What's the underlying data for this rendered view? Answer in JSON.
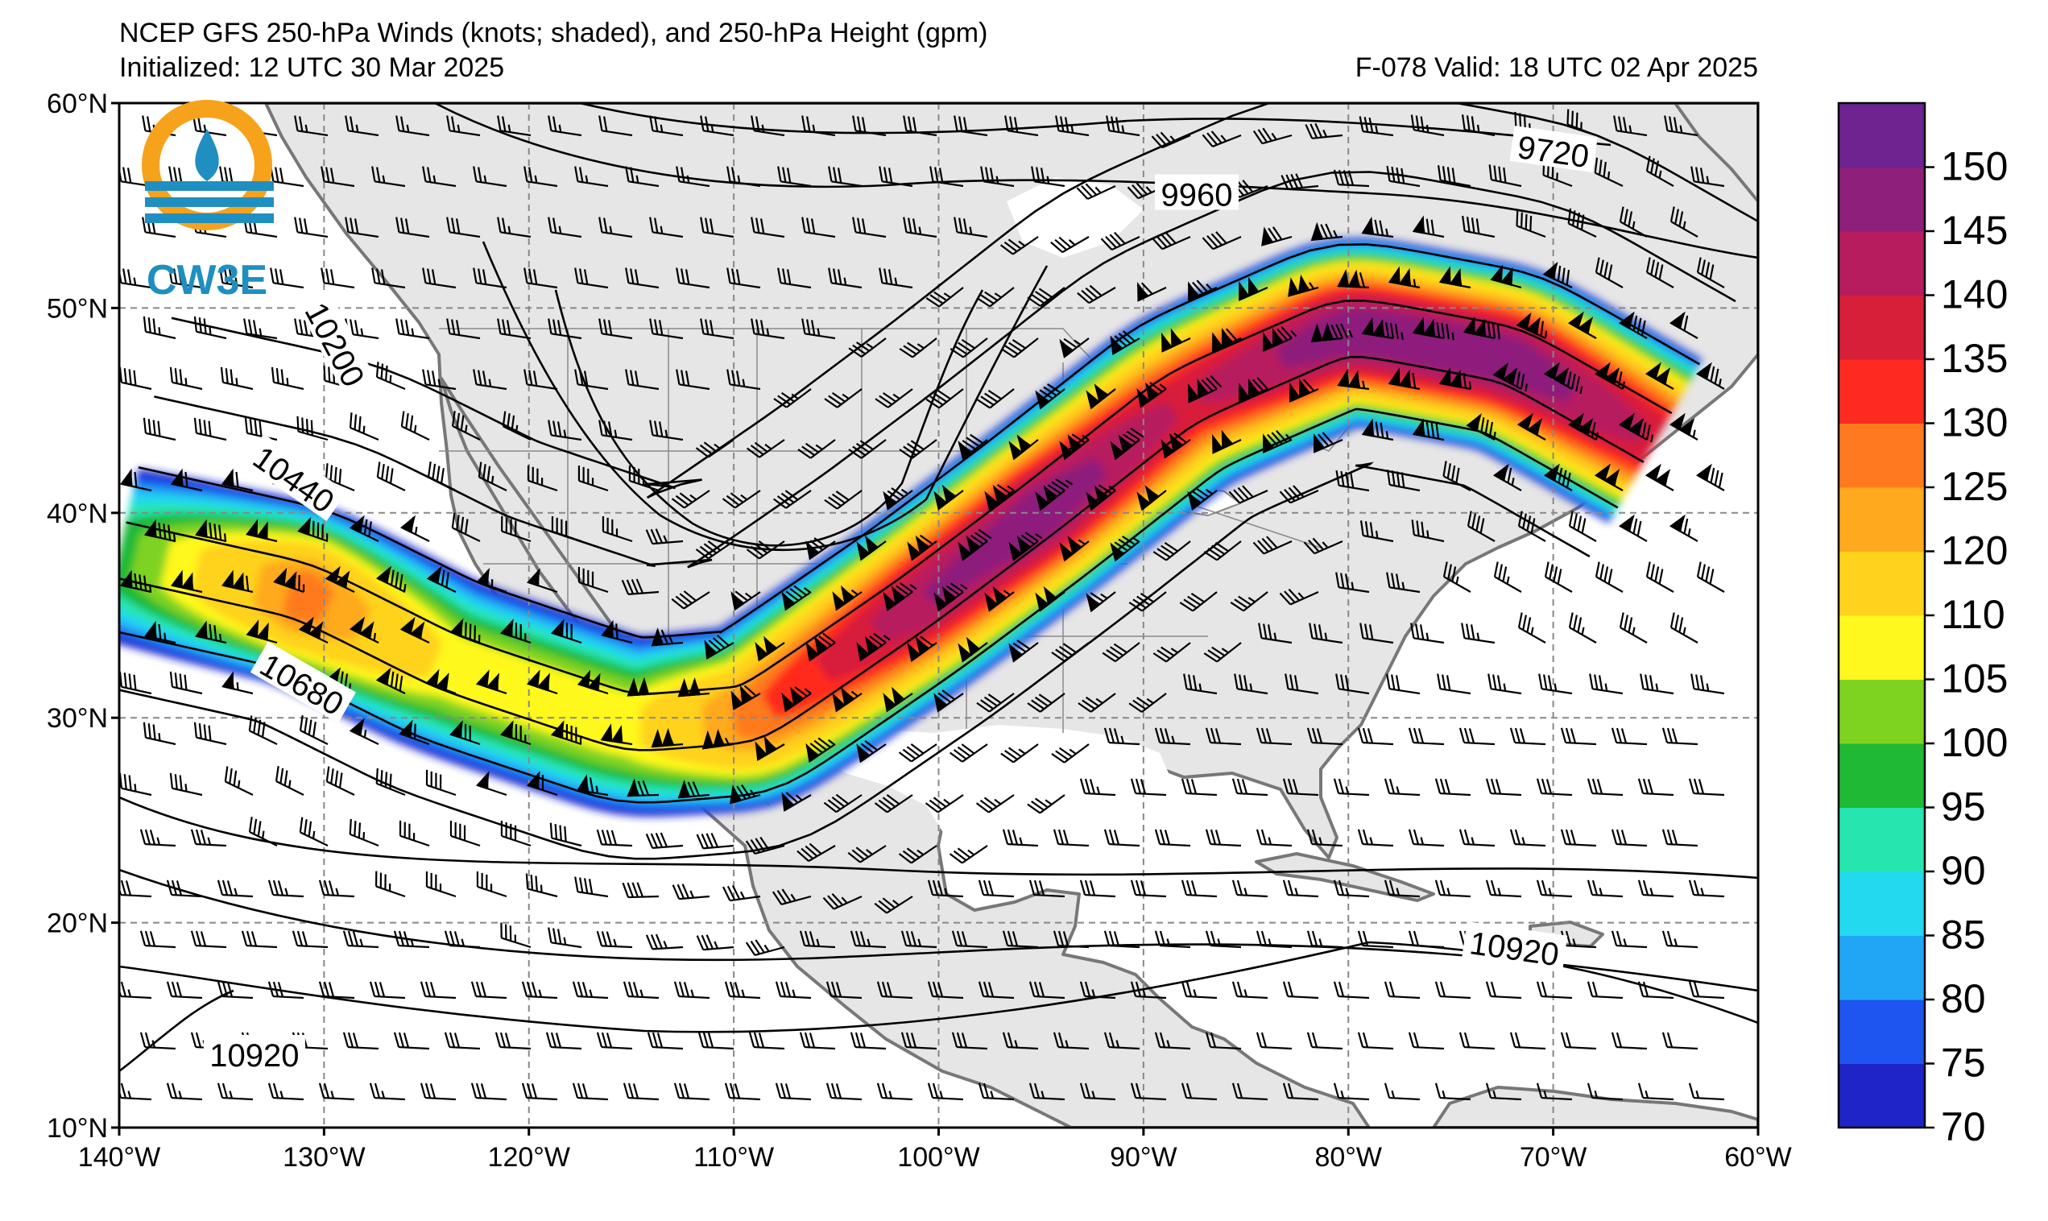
{
  "header": {
    "title": "NCEP GFS 250-hPa Winds (knots; shaded), and 250-hPa Height (gpm)",
    "initialized": "Initialized: 12 UTC 30 Mar 2025",
    "valid": "F-078  Valid: 18 UTC 02 Apr 2025"
  },
  "logo": {
    "text": "CW3E",
    "colors": {
      "sun": "#F7A21B",
      "water": "#1F8FC1"
    }
  },
  "map": {
    "extent": {
      "lon_min": -140,
      "lon_max": -60,
      "lat_min": 10,
      "lat_max": 60
    },
    "lat_ticks": [
      {
        "lat": 60,
        "label": "60°N"
      },
      {
        "lat": 50,
        "label": "50°N"
      },
      {
        "lat": 40,
        "label": "40°N"
      },
      {
        "lat": 30,
        "label": "30°N"
      },
      {
        "lat": 20,
        "label": "20°N"
      },
      {
        "lat": 10,
        "label": "10°N"
      }
    ],
    "lon_ticks": [
      {
        "lon": -140,
        "label": "140°W"
      },
      {
        "lon": -130,
        "label": "130°W"
      },
      {
        "lon": -120,
        "label": "120°W"
      },
      {
        "lon": -110,
        "label": "110°W"
      },
      {
        "lon": -100,
        "label": "100°W"
      },
      {
        "lon": -90,
        "label": "90°W"
      },
      {
        "lon": -80,
        "label": "80°W"
      },
      {
        "lon": -70,
        "label": "70°W"
      },
      {
        "lon": -60,
        "label": "60°W"
      }
    ],
    "contour_labels": [
      {
        "text": "9720",
        "lon": -70.0,
        "lat": 57.6,
        "angle": 8
      },
      {
        "text": "9960",
        "lon": -87.4,
        "lat": 55.5,
        "angle": 0
      },
      {
        "text": "10200",
        "lon": -129.5,
        "lat": 48.2,
        "angle": 62
      },
      {
        "text": "10440",
        "lon": -131.5,
        "lat": 41.6,
        "angle": 35
      },
      {
        "text": "10680",
        "lon": -131.1,
        "lat": 31.6,
        "angle": 30
      },
      {
        "text": "10920",
        "lon": -71.9,
        "lat": 18.7,
        "angle": 8
      },
      {
        "text": "10920",
        "lon": -133.4,
        "lat": 13.5,
        "angle": 0
      }
    ]
  },
  "colorbar": {
    "levels": [
      70,
      75,
      80,
      85,
      90,
      95,
      100,
      105,
      110,
      120,
      125,
      130,
      135,
      140,
      145,
      150
    ],
    "colors": [
      "#1F24C9",
      "#1E55F0",
      "#20A6F4",
      "#22D9F0",
      "#27E5AE",
      "#1FB934",
      "#7ED321",
      "#FFF81F",
      "#FFD21E",
      "#FFA91E",
      "#FF7A1F",
      "#FF2A1F",
      "#D81F3A",
      "#B71D5E",
      "#8E1F7B",
      "#6E2391"
    ],
    "tick_labels": [
      "70",
      "75",
      "80",
      "85",
      "90",
      "95",
      "100",
      "105",
      "110",
      "120",
      "125",
      "130",
      "135",
      "140",
      "145",
      "150"
    ]
  },
  "chart_data": {
    "type": "heatmap",
    "variables": [
      "250-hPa wind speed (knots)",
      "250-hPa geopotential height (gpm)"
    ],
    "contour_values_labeled": [
      9720,
      9960,
      10200,
      10440,
      10680,
      10920
    ],
    "shading_min_knots": 70,
    "shading_max_knots": 150,
    "jet_axis": [
      {
        "lon": -140,
        "lat": 38.0,
        "speed": 100
      },
      {
        "lon": -131,
        "lat": 36.0,
        "speed": 130
      },
      {
        "lon": -124,
        "lat": 32.5,
        "speed": 110
      },
      {
        "lon": -115,
        "lat": 29.5,
        "speed": 110
      },
      {
        "lon": -109,
        "lat": 30.0,
        "speed": 130
      },
      {
        "lon": -101,
        "lat": 35.5,
        "speed": 145
      },
      {
        "lon": -95,
        "lat": 40.0,
        "speed": 150
      },
      {
        "lon": -88,
        "lat": 45.5,
        "speed": 140
      },
      {
        "lon": -80,
        "lat": 49.0,
        "speed": 150
      },
      {
        "lon": -72,
        "lat": 47.5,
        "speed": 150
      },
      {
        "lon": -65,
        "lat": 43.5,
        "speed": 140
      }
    ]
  }
}
